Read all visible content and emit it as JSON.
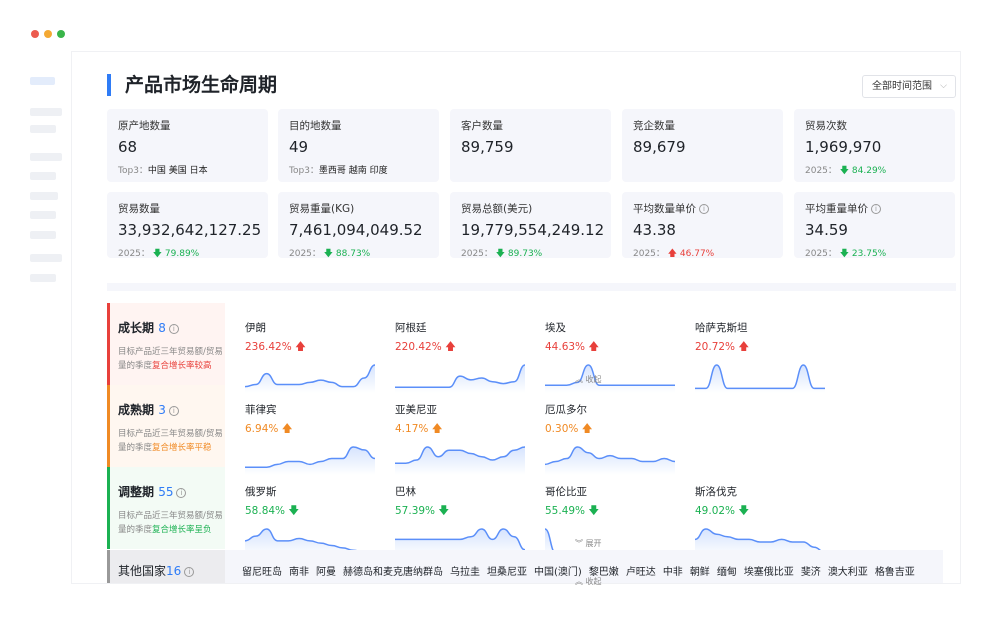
{
  "window": {
    "dots": [
      "#ec5b4e",
      "#f4a933",
      "#39b54a"
    ]
  },
  "header": {
    "title": "产品市场生命周期",
    "range_select": "全部时间范围"
  },
  "cards": [
    {
      "label": "原产地数量",
      "value": "68",
      "sub_label": "Top3：",
      "sub_value": "中国 美国 日本"
    },
    {
      "label": "目的地数量",
      "value": "49",
      "sub_label": "Top3：",
      "sub_value": "墨西哥 越南 印度"
    },
    {
      "label": "客户数量",
      "value": "89,759"
    },
    {
      "label": "竞企数量",
      "value": "89,679"
    },
    {
      "label": "贸易次数",
      "value": "1,969,970",
      "sub_label": "2025：",
      "change": "84.29%",
      "dir": "down"
    },
    {
      "label": "贸易数量",
      "value": "33,932,642,127.25",
      "sub_label": "2025：",
      "change": "79.89%",
      "dir": "down"
    },
    {
      "label": "贸易重量(KG)",
      "value": "7,461,094,049.52",
      "sub_label": "2025：",
      "change": "88.73%",
      "dir": "down"
    },
    {
      "label": "贸易总额(美元)",
      "value": "19,779,554,249.12",
      "sub_label": "2025：",
      "change": "89.73%",
      "dir": "down"
    },
    {
      "label": "平均数量单价",
      "value": "43.38",
      "sub_label": "2025：",
      "change": "46.77%",
      "dir": "up",
      "info": true
    },
    {
      "label": "平均重量单价",
      "value": "34.59",
      "sub_label": "2025：",
      "change": "23.75%",
      "dir": "down",
      "info": true
    }
  ],
  "stages": [
    {
      "name": "成长期",
      "count": "8",
      "desc": "目标产品近三年贸易额/贸易量的季度",
      "hl": "复合增长率较高",
      "color": "#e8403b",
      "bg": "#fff4f2",
      "toggle": "收起",
      "items": [
        {
          "name": "伊朗",
          "pct": "236.42%",
          "dir": "up",
          "v": [
            2,
            3,
            8,
            3,
            3,
            3,
            4,
            5,
            4,
            2,
            2,
            6,
            12
          ]
        },
        {
          "name": "阿根廷",
          "pct": "220.42%",
          "dir": "up",
          "v": [
            2,
            2,
            2,
            2,
            2,
            2,
            8,
            6,
            7,
            5,
            4,
            5,
            14
          ]
        },
        {
          "name": "埃及",
          "pct": "44.63%",
          "dir": "up",
          "v": [
            2,
            2,
            2,
            3,
            9,
            2,
            2,
            2,
            2,
            2,
            2,
            2,
            2
          ]
        },
        {
          "name": "哈萨克斯坦",
          "pct": "20.72%",
          "dir": "up",
          "v": [
            1,
            1,
            10,
            1,
            1,
            1,
            1,
            1,
            1,
            1,
            10,
            1,
            1
          ]
        }
      ]
    },
    {
      "name": "成熟期",
      "count": "3",
      "desc": "目标产品近三年贸易额/贸易量的季度",
      "hl": "复合增长率平稳",
      "color": "#f08a24",
      "bg": "#fff7f0",
      "toggle": "",
      "items": [
        {
          "name": "菲律宾",
          "pct": "6.94%",
          "dir": "up",
          "v": [
            2,
            2,
            2,
            3,
            4,
            4,
            3,
            4,
            5,
            5,
            9,
            8,
            5
          ]
        },
        {
          "name": "亚美尼亚",
          "pct": "4.17%",
          "dir": "up",
          "v": [
            3,
            3,
            4,
            8,
            5,
            7,
            7,
            6,
            5,
            4,
            5,
            7,
            8
          ]
        },
        {
          "name": "厄瓜多尔",
          "pct": "0.30%",
          "dir": "up",
          "v": [
            3,
            4,
            5,
            9,
            7,
            5,
            6,
            5,
            5,
            4,
            4,
            5,
            4
          ]
        }
      ]
    },
    {
      "name": "调整期",
      "count": "55",
      "desc": "目标产品近三年贸易额/贸易量的季度",
      "hl": "复合增长率呈负",
      "color": "#1bb152",
      "bg": "#f3fbf5",
      "toggle": "展开",
      "items": [
        {
          "name": "俄罗斯",
          "pct": "58.84%",
          "dir": "down",
          "v": [
            6,
            8,
            11,
            6,
            6,
            7,
            6,
            5,
            4,
            3,
            2,
            1,
            1
          ]
        },
        {
          "name": "巴林",
          "pct": "57.39%",
          "dir": "down",
          "v": [
            6,
            6,
            6,
            6,
            6,
            6,
            6,
            7,
            10,
            6,
            10,
            7,
            2
          ]
        },
        {
          "name": "哥伦比亚",
          "pct": "55.49%",
          "dir": "down",
          "v": [
            14,
            1,
            1,
            1,
            1,
            1,
            1,
            1,
            1,
            1,
            1,
            1,
            1
          ]
        },
        {
          "name": "斯洛伐克",
          "pct": "49.02%",
          "dir": "down",
          "v": [
            6,
            10,
            8,
            7,
            6,
            6,
            5,
            5,
            6,
            5,
            5,
            3,
            1
          ]
        }
      ]
    }
  ],
  "other": {
    "label": "其他国家",
    "count": "16",
    "toggle": "收起",
    "countries": [
      "留尼旺岛",
      "南非",
      "阿曼",
      "赫德岛和麦克唐纳群岛",
      "乌拉圭",
      "坦桑尼亚",
      "中国(澳门)",
      "黎巴嫩",
      "卢旺达",
      "中非",
      "朝鲜",
      "缅甸",
      "埃塞俄比亚",
      "斐济",
      "澳大利亚",
      "格鲁吉亚"
    ]
  },
  "colors": {
    "accent": "#2f7cf6",
    "up": "#e8403b",
    "down": "#1bb152",
    "stable": "#f08a24",
    "line": "#5b8ff9"
  }
}
